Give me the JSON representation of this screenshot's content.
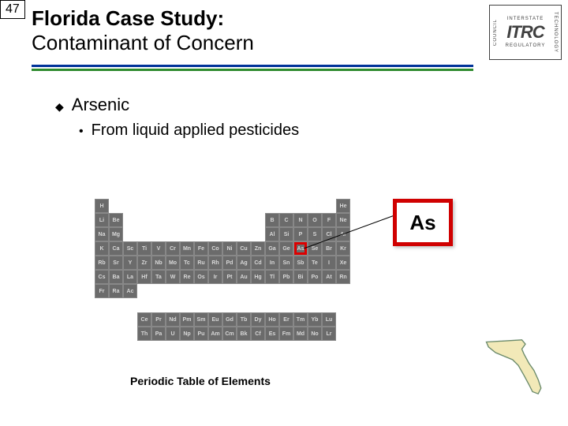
{
  "slide_number": "47",
  "title": {
    "line1": "Florida Case Study:",
    "line2": "Contaminant of Concern"
  },
  "logo": {
    "top": "INTERSTATE",
    "center": "ITRC",
    "left": "COUNCIL",
    "right": "TECHNOLOGY",
    "bottom": "REGULATORY"
  },
  "bullets": {
    "l1": "Arsenic",
    "l2": "From liquid applied pesticides"
  },
  "callout": {
    "symbol": "As",
    "border_color": "#d00000"
  },
  "caption": "Periodic Table of Elements",
  "periodic": {
    "cell_bg": "#6b6b6b",
    "cell_text": "#d8d8d8",
    "row1": [
      "H",
      "",
      "",
      "",
      "",
      "",
      "",
      "",
      "",
      "",
      "",
      "",
      "",
      "",
      "",
      "",
      "",
      "He"
    ],
    "row2": [
      "Li",
      "Be",
      "",
      "",
      "",
      "",
      "",
      "",
      "",
      "",
      "",
      "",
      "B",
      "C",
      "N",
      "O",
      "F",
      "Ne"
    ],
    "row3": [
      "Na",
      "Mg",
      "",
      "",
      "",
      "",
      "",
      "",
      "",
      "",
      "",
      "",
      "Al",
      "Si",
      "P",
      "S",
      "Cl",
      "Ar"
    ],
    "row4": [
      "K",
      "Ca",
      "Sc",
      "Ti",
      "V",
      "Cr",
      "Mn",
      "Fe",
      "Co",
      "Ni",
      "Cu",
      "Zn",
      "Ga",
      "Ge",
      "As",
      "Se",
      "Br",
      "Kr"
    ],
    "row5": [
      "Rb",
      "Sr",
      "Y",
      "Zr",
      "Nb",
      "Mo",
      "Tc",
      "Ru",
      "Rh",
      "Pd",
      "Ag",
      "Cd",
      "In",
      "Sn",
      "Sb",
      "Te",
      "I",
      "Xe"
    ],
    "row6": [
      "Cs",
      "Ba",
      "La",
      "Hf",
      "Ta",
      "W",
      "Re",
      "Os",
      "Ir",
      "Pt",
      "Au",
      "Hg",
      "Tl",
      "Pb",
      "Bi",
      "Po",
      "At",
      "Rn"
    ],
    "row7": [
      "Fr",
      "Ra",
      "Ac"
    ],
    "lanth": [
      "Ce",
      "Pr",
      "Nd",
      "Pm",
      "Sm",
      "Eu",
      "Gd",
      "Tb",
      "Dy",
      "Ho",
      "Er",
      "Tm",
      "Yb",
      "Lu"
    ],
    "act": [
      "Th",
      "Pa",
      "U",
      "Np",
      "Pu",
      "Am",
      "Cm",
      "Bk",
      "Cf",
      "Es",
      "Fm",
      "Md",
      "No",
      "Lr"
    ]
  },
  "colors": {
    "underline_blue": "#003399",
    "underline_green": "#2e8b2e",
    "florida_fill": "#f2e9b8",
    "florida_stroke": "#6a8a6a"
  }
}
